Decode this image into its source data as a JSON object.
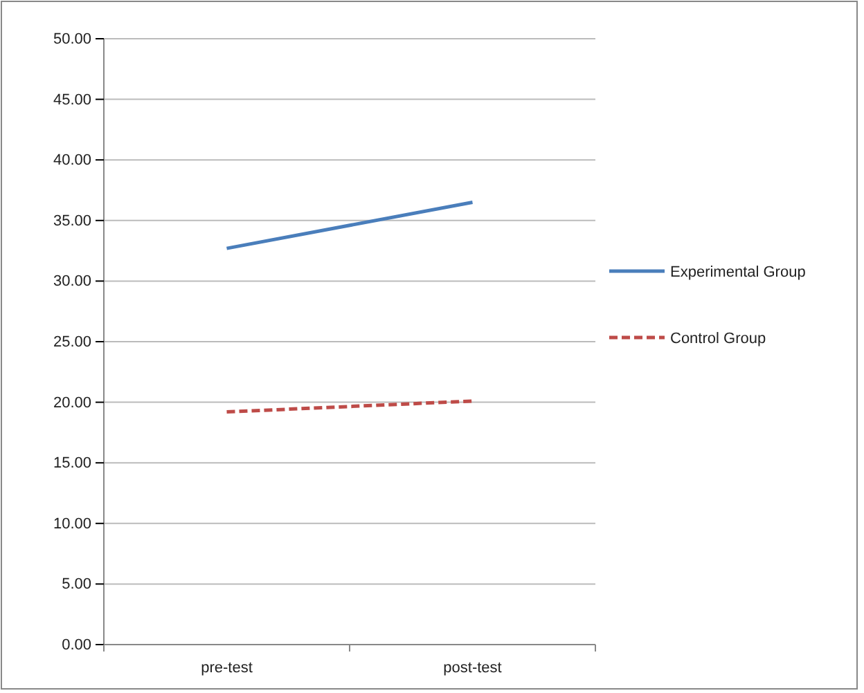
{
  "chart_data": {
    "type": "line",
    "categories": [
      "pre-test",
      "post-test"
    ],
    "series": [
      {
        "name": "Experimental Group",
        "color": "#4a7ebb",
        "values": [
          32.7,
          36.5
        ],
        "line_style": "solid"
      },
      {
        "name": "Control Group",
        "color": "#be4b48",
        "values": [
          19.2,
          20.1
        ],
        "line_style": "dashed"
      }
    ],
    "ylim": [
      0,
      50
    ],
    "yticks": [
      {
        "value": 0,
        "label": "0.00"
      },
      {
        "value": 5,
        "label": "5.00"
      },
      {
        "value": 10,
        "label": "10.00"
      },
      {
        "value": 15,
        "label": "15.00"
      },
      {
        "value": 20,
        "label": "20.00"
      },
      {
        "value": 25,
        "label": "25.00"
      },
      {
        "value": 30,
        "label": "30.00"
      },
      {
        "value": 35,
        "label": "35.00"
      },
      {
        "value": 40,
        "label": "40.00"
      },
      {
        "value": 45,
        "label": "45.00"
      },
      {
        "value": 50,
        "label": "50.00"
      }
    ],
    "grid": "y",
    "legend": "right",
    "marker": "none"
  }
}
